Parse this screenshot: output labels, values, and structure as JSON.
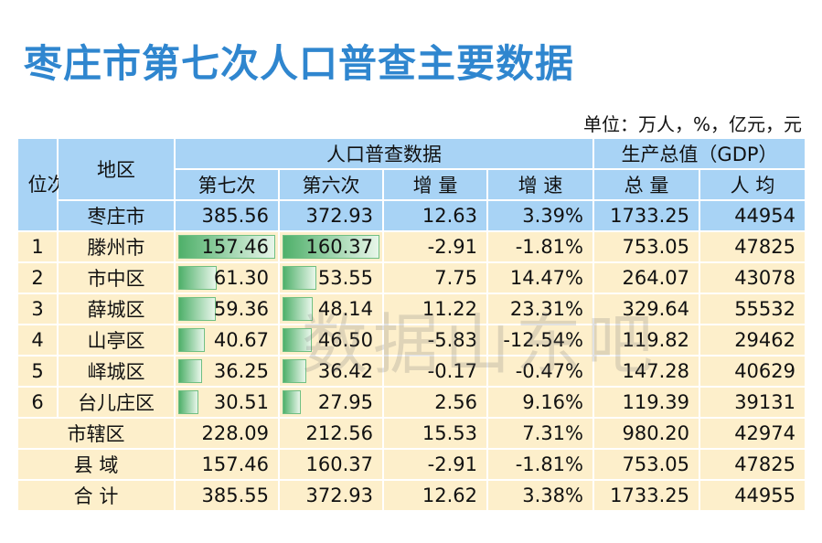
{
  "title": "枣庄市第七次人口普查主要数据",
  "unit": "单位：万人，%，亿元，元",
  "watermark": "数据山东吧",
  "table": {
    "header": {
      "rank": "位次",
      "region": "地区",
      "census": "人口普查数据",
      "gdp": "生产总值（GDP）",
      "columns": [
        "第七次",
        "第六次",
        "增 量",
        "增 速",
        "总 量",
        "人 均"
      ]
    },
    "rows": [
      {
        "region": "枣庄市",
        "cells": [
          "385.56",
          "372.93",
          "12.63",
          "3.39%",
          "1733.25",
          "44954"
        ]
      },
      {
        "rank": "1",
        "region": "滕州市",
        "cells": [
          "157.46",
          "160.37",
          "-2.91",
          "-1.81%",
          "753.05",
          "47825"
        ]
      },
      {
        "rank": "2",
        "region": "市中区",
        "cells": [
          "61.30",
          "53.55",
          "7.75",
          "14.47%",
          "264.07",
          "43078"
        ]
      },
      {
        "rank": "3",
        "region": "薛城区",
        "cells": [
          "59.36",
          "48.14",
          "11.22",
          "23.31%",
          "329.64",
          "55532"
        ]
      },
      {
        "rank": "4",
        "region": "山亭区",
        "cells": [
          "40.67",
          "46.50",
          "-5.83",
          "-12.54%",
          "119.82",
          "29462"
        ]
      },
      {
        "rank": "5",
        "region": "峄城区",
        "cells": [
          "36.25",
          "36.42",
          "-0.17",
          "-0.47%",
          "147.28",
          "40629"
        ]
      },
      {
        "rank": "6",
        "region": "台儿庄区",
        "cells": [
          "30.51",
          "27.95",
          "2.56",
          "9.16%",
          "119.39",
          "39131"
        ]
      },
      {
        "region": "市辖区",
        "cells": [
          "228.09",
          "212.56",
          "15.53",
          "7.31%",
          "980.20",
          "42974"
        ]
      },
      {
        "region": "县 域",
        "cells": [
          "157.46",
          "160.37",
          "-2.91",
          "-1.81%",
          "753.05",
          "47825"
        ]
      },
      {
        "region": "合 计",
        "cells": [
          "385.55",
          "372.93",
          "12.62",
          "3.38%",
          "1733.25",
          "44955"
        ]
      }
    ]
  }
}
